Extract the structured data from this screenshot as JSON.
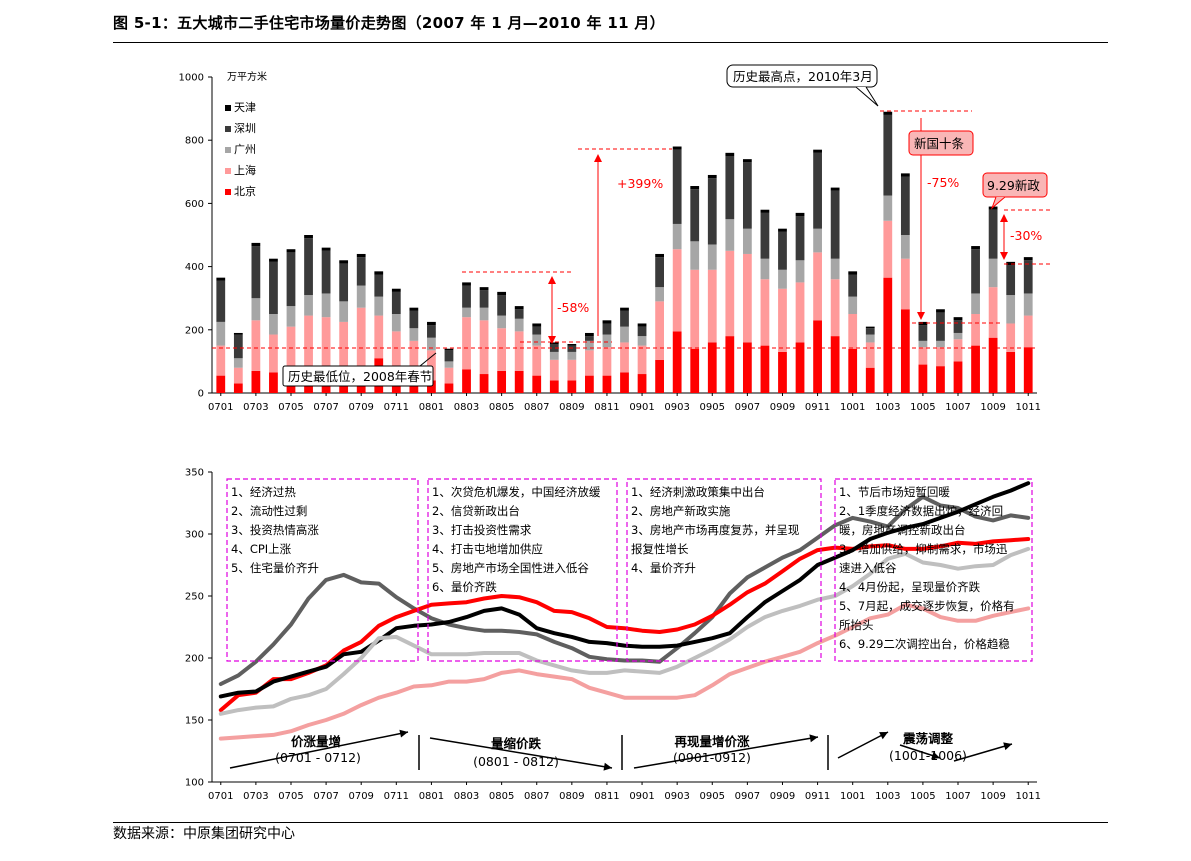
{
  "page": {
    "title": "图 5-1：五大城市二手住宅市场量价走势图（2007 年 1 月—2010 年 11 月）",
    "source": "数据来源：中原集团研究中心"
  },
  "chart_data": [
    {
      "type": "bar",
      "stacked": true,
      "unit_label": "万平方米",
      "ylim": [
        0,
        1000
      ],
      "yticks": [
        0,
        200,
        400,
        600,
        800,
        1000
      ],
      "xtick_labels": [
        "0701",
        "0703",
        "0705",
        "0707",
        "0709",
        "0711",
        "0801",
        "0803",
        "0805",
        "0807",
        "0809",
        "0811",
        "0901",
        "0903",
        "0905",
        "0907",
        "0909",
        "0911",
        "1001",
        "1003",
        "1005",
        "1007",
        "1009",
        "1011"
      ],
      "categories": [
        "0701",
        "0702",
        "0703",
        "0704",
        "0705",
        "0706",
        "0707",
        "0708",
        "0709",
        "0710",
        "0711",
        "0712",
        "0801",
        "0802",
        "0803",
        "0804",
        "0805",
        "0806",
        "0807",
        "0808",
        "0809",
        "0810",
        "0811",
        "0812",
        "0901",
        "0902",
        "0903",
        "0904",
        "0905",
        "0906",
        "0907",
        "0908",
        "0909",
        "0910",
        "0911",
        "0912",
        "1001",
        "1002",
        "1003",
        "1004",
        "1005",
        "1006",
        "1007",
        "1008",
        "1009",
        "1010",
        "1011"
      ],
      "legend_position": "top-left",
      "series": [
        {
          "name": "北京",
          "color": "#ff0000",
          "values": [
            55,
            30,
            70,
            65,
            70,
            65,
            75,
            60,
            65,
            110,
            75,
            70,
            40,
            30,
            75,
            60,
            70,
            70,
            55,
            40,
            40,
            55,
            55,
            65,
            60,
            105,
            195,
            140,
            160,
            180,
            160,
            150,
            130,
            160,
            230,
            180,
            140,
            80,
            365,
            265,
            90,
            85,
            100,
            150,
            175,
            130,
            145
          ]
        },
        {
          "name": "上海",
          "color": "#ff9a9a",
          "values": [
            95,
            50,
            160,
            120,
            140,
            180,
            165,
            165,
            205,
            135,
            120,
            95,
            95,
            50,
            165,
            170,
            135,
            125,
            95,
            65,
            65,
            80,
            90,
            95,
            90,
            185,
            260,
            250,
            230,
            270,
            280,
            210,
            200,
            190,
            215,
            180,
            110,
            80,
            180,
            160,
            55,
            60,
            70,
            100,
            160,
            90,
            100
          ]
        },
        {
          "name": "广州",
          "color": "#a6a6a6",
          "values": [
            75,
            30,
            70,
            65,
            65,
            65,
            75,
            65,
            70,
            60,
            55,
            40,
            40,
            20,
            30,
            40,
            40,
            40,
            35,
            25,
            25,
            30,
            40,
            50,
            30,
            45,
            80,
            90,
            80,
            100,
            80,
            65,
            60,
            70,
            75,
            65,
            55,
            25,
            80,
            75,
            20,
            20,
            20,
            65,
            90,
            90,
            70
          ]
        },
        {
          "name": "深圳",
          "color": "#3a3a3a",
          "values": [
            130,
            75,
            165,
            165,
            170,
            180,
            135,
            120,
            90,
            70,
            70,
            55,
            40,
            35,
            70,
            55,
            65,
            30,
            25,
            25,
            20,
            15,
            35,
            50,
            30,
            95,
            235,
            165,
            210,
            200,
            210,
            145,
            120,
            140,
            240,
            215,
            70,
            20,
            255,
            185,
            50,
            90,
            40,
            140,
            155,
            95,
            105
          ]
        },
        {
          "name": "天津",
          "color": "#000000",
          "values": [
            10,
            5,
            10,
            10,
            10,
            10,
            10,
            10,
            10,
            10,
            10,
            10,
            10,
            5,
            10,
            10,
            10,
            10,
            10,
            5,
            5,
            10,
            10,
            10,
            10,
            10,
            10,
            10,
            10,
            10,
            10,
            10,
            10,
            10,
            10,
            10,
            10,
            5,
            10,
            10,
            10,
            10,
            10,
            10,
            10,
            10,
            10
          ]
        }
      ],
      "annotations": {
        "low_label": "历史最低位，2008年春节",
        "high_label": "历史最高点，2010年3月",
        "policy1": "新国十条",
        "policy2": "9.29新政",
        "change1": "-58%",
        "change2": "+399%",
        "change3": "-75%",
        "change4": "-30%"
      }
    },
    {
      "type": "line",
      "ylim": [
        100,
        350
      ],
      "yticks": [
        100,
        150,
        200,
        250,
        300,
        350
      ],
      "xtick_labels": [
        "0701",
        "0703",
        "0705",
        "0707",
        "0709",
        "0711",
        "0801",
        "0803",
        "0805",
        "0807",
        "0809",
        "0811",
        "0901",
        "0903",
        "0905",
        "0907",
        "0909",
        "0911",
        "1001",
        "1003",
        "1005",
        "1007",
        "1009",
        "1011"
      ],
      "series": [
        {
          "color": "#5f5f5f",
          "values": [
            179,
            186,
            197,
            211,
            227,
            248,
            263,
            267,
            261,
            260,
            249,
            240,
            232,
            227,
            224,
            222,
            222,
            221,
            219,
            213,
            208,
            201,
            199,
            198,
            198,
            197,
            208,
            220,
            233,
            252,
            265,
            273,
            281,
            287,
            297,
            307,
            313,
            310,
            306,
            320,
            330,
            323,
            321,
            314,
            311,
            315,
            313
          ]
        },
        {
          "color": "#ff0000",
          "values": [
            158,
            170,
            172,
            183,
            183,
            188,
            194,
            206,
            213,
            226,
            233,
            238,
            243,
            244,
            245,
            248,
            250,
            249,
            245,
            238,
            237,
            232,
            225,
            224,
            222,
            221,
            223,
            227,
            234,
            243,
            253,
            260,
            270,
            280,
            287,
            289,
            288,
            290,
            291,
            288,
            288,
            290,
            293,
            292,
            294,
            295,
            296
          ]
        },
        {
          "color": "#000000",
          "values": [
            169,
            172,
            173,
            181,
            185,
            189,
            193,
            203,
            205,
            214,
            224,
            226,
            227,
            229,
            233,
            238,
            240,
            235,
            224,
            220,
            217,
            213,
            212,
            210,
            209,
            209,
            210,
            213,
            216,
            220,
            233,
            245,
            254,
            263,
            275,
            281,
            287,
            296,
            301,
            305,
            308,
            313,
            318,
            324,
            330,
            335,
            341
          ]
        },
        {
          "color": "#bfbfbf",
          "values": [
            155,
            158,
            160,
            161,
            167,
            170,
            175,
            187,
            200,
            216,
            217,
            210,
            203,
            203,
            203,
            204,
            204,
            204,
            198,
            194,
            190,
            188,
            188,
            190,
            189,
            188,
            193,
            200,
            207,
            215,
            225,
            233,
            238,
            242,
            247,
            250,
            258,
            268,
            280,
            284,
            277,
            275,
            272,
            274,
            275,
            283,
            288
          ]
        },
        {
          "color": "#f4a0a0",
          "values": [
            135,
            136,
            137,
            138,
            141,
            146,
            150,
            155,
            162,
            168,
            172,
            177,
            178,
            181,
            181,
            183,
            188,
            190,
            187,
            185,
            183,
            176,
            172,
            168,
            168,
            168,
            168,
            170,
            178,
            187,
            192,
            197,
            201,
            205,
            212,
            218,
            225,
            232,
            235,
            243,
            240,
            233,
            230,
            230,
            234,
            237,
            240
          ]
        }
      ],
      "boxes": [
        [
          "1、经济过热",
          "2、流动性过剩",
          "3、投资热情高涨",
          "4、CPI上涨",
          "5、住宅量价齐升"
        ],
        [
          "1、次贷危机爆发，中国经济放缓",
          "2、信贷新政出台",
          "3、打击投资性需求",
          "4、打击屯地增加供应",
          "5、房地产市场全国性进入低谷",
          "6、量价齐跌"
        ],
        [
          "1、经济刺激政策集中出台",
          "2、房地产新政实施",
          "3、房地产市场再度复苏，并呈现",
          "报复性增长",
          "4、量价齐升"
        ],
        [
          "1、节后市场短暂回暖",
          "2、1季度经济数据出炉，经济回",
          "暖，房地产调控新政出台",
          "3、增加供给，抑制需求，市场迅",
          "速进入低谷",
          "4、4月份起，呈现量价齐跌",
          "5、7月起，成交逐步恢复，价格有",
          "所抬头",
          "6、9.29二次调控出台，价格趋稳"
        ]
      ],
      "phases": [
        {
          "name": "价涨量增",
          "range": "(0701 - 0712)"
        },
        {
          "name": "量缩价跌",
          "range": "(0801 - 0812)"
        },
        {
          "name": "再现量增价涨",
          "range": "(0901-0912)"
        },
        {
          "name": "震荡调整",
          "range": "(1001-1006)"
        }
      ]
    }
  ]
}
